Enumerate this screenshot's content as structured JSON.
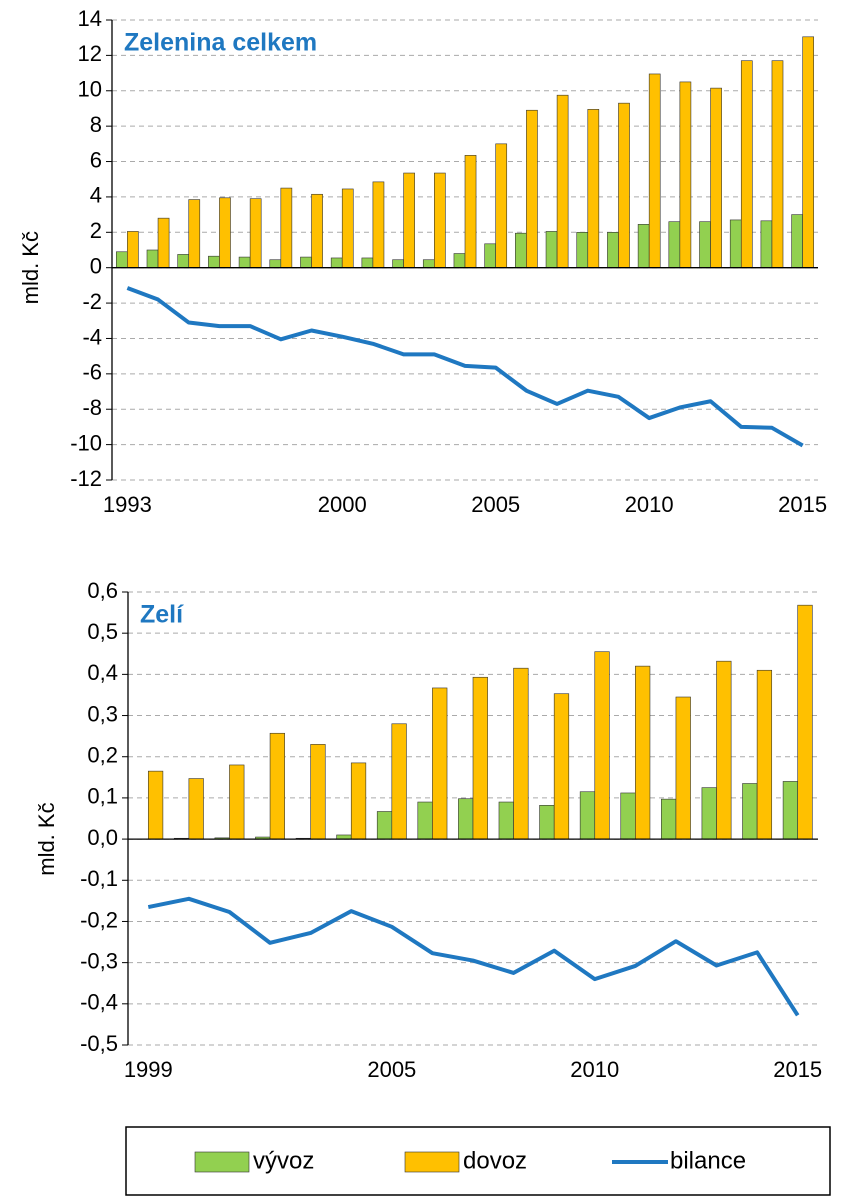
{
  "chart_data": [
    {
      "type": "bar-line",
      "title": "Zelenina celkem",
      "y_label": "mld. Kč",
      "categories": [
        "1993",
        null,
        null,
        null,
        null,
        null,
        null,
        "2000",
        null,
        null,
        null,
        null,
        "2005",
        null,
        null,
        null,
        null,
        "2010",
        null,
        null,
        null,
        null,
        "2015"
      ],
      "series": [
        {
          "name": "vývoz",
          "type": "bar",
          "color": "#92d050",
          "values": [
            0.9,
            1.0,
            0.75,
            0.65,
            0.6,
            0.45,
            0.6,
            0.55,
            0.55,
            0.45,
            0.45,
            0.8,
            1.35,
            1.95,
            2.05,
            2.0,
            2.0,
            2.45,
            2.6,
            2.6,
            2.7,
            2.65,
            3.0
          ]
        },
        {
          "name": "dovoz",
          "type": "bar",
          "color": "#ffc000",
          "values": [
            2.05,
            2.8,
            3.85,
            3.95,
            3.9,
            4.5,
            4.15,
            4.45,
            4.85,
            5.35,
            5.35,
            6.35,
            7.0,
            8.9,
            9.75,
            8.95,
            9.3,
            10.95,
            10.5,
            10.15,
            11.7,
            11.7,
            13.05
          ]
        },
        {
          "name": "bilance",
          "type": "line",
          "color": "#1f78c1",
          "values": [
            -1.15,
            -1.8,
            -3.1,
            -3.3,
            -3.3,
            -4.05,
            -3.55,
            -3.9,
            -4.3,
            -4.9,
            -4.9,
            -5.55,
            -5.65,
            -6.95,
            -7.7,
            -6.95,
            -7.3,
            -8.5,
            -7.9,
            -7.55,
            -9.0,
            -9.05,
            -10.05
          ]
        }
      ],
      "ylim": [
        -12,
        14
      ],
      "yticks": [
        -12,
        -10,
        -8,
        -6,
        -4,
        -2,
        0,
        2,
        4,
        6,
        8,
        10,
        12,
        14
      ],
      "grid": true
    },
    {
      "type": "bar-line",
      "title": "Zelí",
      "y_label": "mld. Kč",
      "categories": [
        "1999",
        null,
        null,
        null,
        null,
        null,
        "2005",
        null,
        null,
        null,
        null,
        "2010",
        null,
        null,
        null,
        null,
        "2015"
      ],
      "series": [
        {
          "name": "vývoz",
          "type": "bar",
          "color": "#92d050",
          "values": [
            0.0,
            0.002,
            0.003,
            0.005,
            0.002,
            0.01,
            0.067,
            0.09,
            0.098,
            0.09,
            0.082,
            0.115,
            0.112,
            0.097,
            0.125,
            0.135,
            0.14
          ]
        },
        {
          "name": "dovoz",
          "type": "bar",
          "color": "#ffc000",
          "values": [
            0.165,
            0.147,
            0.18,
            0.257,
            0.23,
            0.185,
            0.28,
            0.367,
            0.393,
            0.415,
            0.353,
            0.455,
            0.42,
            0.345,
            0.432,
            0.41,
            0.568
          ]
        },
        {
          "name": "bilance",
          "type": "line",
          "color": "#1f78c1",
          "values": [
            -0.165,
            -0.145,
            -0.177,
            -0.252,
            -0.228,
            -0.175,
            -0.213,
            -0.277,
            -0.295,
            -0.325,
            -0.271,
            -0.34,
            -0.308,
            -0.248,
            -0.307,
            -0.275,
            -0.428
          ]
        }
      ],
      "ylim": [
        -0.5,
        0.6
      ],
      "yticks": [
        {
          "value": -0.5,
          "label": "-0,5"
        },
        {
          "value": -0.4,
          "label": "-0,4"
        },
        {
          "value": -0.3,
          "label": "-0,3"
        },
        {
          "value": -0.2,
          "label": "-0,2"
        },
        {
          "value": -0.1,
          "label": "-0,1"
        },
        {
          "value": 0.0,
          "label": "0,0"
        },
        {
          "value": 0.1,
          "label": "0,1"
        },
        {
          "value": 0.2,
          "label": "0,2"
        },
        {
          "value": 0.3,
          "label": "0,3"
        },
        {
          "value": 0.4,
          "label": "0,4"
        },
        {
          "value": 0.5,
          "label": "0,5"
        },
        {
          "value": 0.6,
          "label": "0,6"
        }
      ],
      "grid": true
    }
  ]
}
